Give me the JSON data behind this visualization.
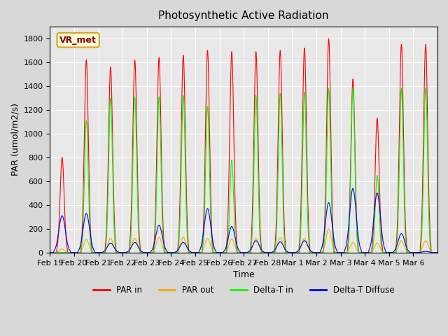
{
  "title": "Photosynthetic Active Radiation",
  "ylabel": "PAR (umol/m2/s)",
  "xlabel": "Time",
  "ylim": [
    0,
    1900
  ],
  "yticks": [
    0,
    200,
    400,
    600,
    800,
    1000,
    1200,
    1400,
    1600,
    1800
  ],
  "background_color": "#d8d8d8",
  "plot_bg_color": "#e8e8e8",
  "grid_color": "white",
  "colors": {
    "par_in": "red",
    "par_out": "orange",
    "delta_t_in": "lime",
    "delta_t_diffuse": "blue"
  },
  "legend_labels": [
    "PAR in",
    "PAR out",
    "Delta-T in",
    "Delta-T Diffuse"
  ],
  "annotation_text": "VR_met",
  "x_tick_labels": [
    "Feb 19",
    "Feb 20",
    "Feb 21",
    "Feb 22",
    "Feb 23",
    "Feb 24",
    "Feb 25",
    "Feb 26",
    "Feb 27",
    "Feb 28",
    "Mar 1",
    "Mar 2",
    "Mar 3",
    "Mar 4",
    "Mar 5",
    "Mar 6"
  ],
  "par_in_peaks": [
    800,
    1620,
    1560,
    1620,
    1640,
    1660,
    1700,
    1690,
    1690,
    1700,
    1720,
    1800,
    1460,
    1130,
    1750,
    1750
  ],
  "par_out_peaks": [
    30,
    110,
    120,
    120,
    130,
    130,
    120,
    115,
    120,
    125,
    120,
    200,
    85,
    80,
    100,
    100
  ],
  "delta_t_in_peaks": [
    0,
    1110,
    1300,
    1310,
    1310,
    1320,
    1230,
    780,
    1320,
    1340,
    1350,
    1380,
    1380,
    650,
    1380,
    1380
  ],
  "delta_t_diffuse_peaks": [
    310,
    330,
    80,
    85,
    230,
    85,
    370,
    220,
    100,
    90,
    100,
    420,
    540,
    500,
    160,
    10
  ],
  "n_days": 16,
  "samples_per_day": 96
}
